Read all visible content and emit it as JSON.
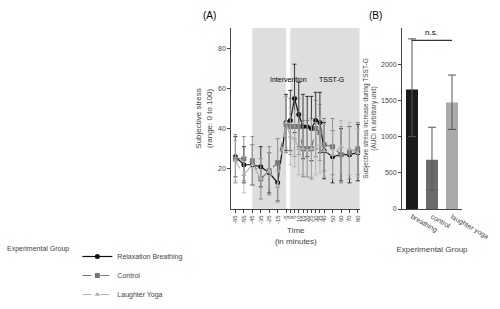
{
  "chart_data": [
    {
      "type": "line",
      "title": "(A)",
      "x_label": "Time\n(in minutes)",
      "y_label": "Subjective stress\n(range: 0 to 100)",
      "x": [
        -65,
        -55,
        -45,
        -35,
        -25,
        -15,
        -5,
        0,
        5,
        10,
        15,
        20,
        25,
        30,
        35,
        40,
        50,
        60,
        70,
        80
      ],
      "xlim": [
        -70,
        83
      ],
      "xticks": [
        -65,
        -55,
        -45,
        -35,
        -25,
        -15,
        -5,
        0,
        5,
        10,
        15,
        20,
        25,
        30,
        35,
        40,
        50,
        60,
        70,
        80
      ],
      "ylim": [
        0,
        90
      ],
      "yticks": [
        20,
        40,
        60,
        80
      ],
      "grid": false,
      "legend": "bottom",
      "legend_title": "Experimental Group",
      "series": [
        {
          "name": "Relaxation Breathing",
          "color": "#111111",
          "marker": "circle",
          "line_style": "solid",
          "values": [
            26,
            22,
            22,
            21,
            18,
            13,
            43,
            44,
            55,
            47,
            41,
            41,
            40,
            44,
            43,
            29,
            26,
            27,
            27,
            28
          ],
          "errors": [
            10,
            9,
            10,
            10,
            10,
            9,
            14,
            15,
            17,
            16,
            16,
            15,
            16,
            14,
            15,
            14,
            13,
            13,
            14,
            14
          ]
        },
        {
          "name": "Control",
          "color": "#777777",
          "marker": "square",
          "line_style": "dash",
          "values": [
            25,
            25,
            24,
            15,
            19,
            23,
            42,
            41,
            41,
            41,
            30,
            30,
            30,
            40,
            38,
            32,
            31,
            27,
            28,
            30
          ],
          "errors": [
            12,
            11,
            12,
            10,
            12,
            12,
            14,
            14,
            15,
            14,
            14,
            14,
            15,
            14,
            14,
            13,
            14,
            14,
            13,
            13
          ]
        },
        {
          "name": "Laughter Yoga",
          "color": "#b0b0b0",
          "marker": "triangle-up",
          "line_style": "dash",
          "values": [
            24,
            17,
            22,
            15,
            19,
            11,
            43,
            36,
            35,
            30,
            30,
            29,
            30,
            30,
            32,
            29,
            27,
            31,
            30,
            28
          ],
          "errors": [
            10,
            9,
            10,
            10,
            9,
            8,
            13,
            14,
            14,
            13,
            13,
            13,
            14,
            13,
            14,
            13,
            12,
            13,
            13,
            12
          ]
        }
      ],
      "shaded_regions": [
        {
          "start": -45,
          "end": -5,
          "color": "#dedede"
        },
        {
          "start": 0,
          "end": 82,
          "color": "#dedede"
        }
      ],
      "annotations": [
        {
          "text": "Intervention",
          "x": -27,
          "y": 67
        },
        {
          "text": "TSST-G",
          "x": 32,
          "y": 67
        }
      ]
    },
    {
      "type": "bar",
      "title": "(B)",
      "x_label": "Experimental Group",
      "y_label": "Subjective stress increase during TSST-G\n(AUCi in arbitrary unit)",
      "categories": [
        "breathing",
        "control",
        "laughter yoga"
      ],
      "values": [
        1650,
        680,
        1470
      ],
      "errors_up": [
        700,
        450,
        380
      ],
      "errors_down": [
        650,
        420,
        370
      ],
      "colors": [
        "#1a1a1a",
        "#6b6b6b",
        "#aaaaaa"
      ],
      "ylim": [
        0,
        2500
      ],
      "yticks": [
        0,
        500,
        1000,
        1500,
        2000
      ],
      "grid": false,
      "annotations": [
        {
          "text": "n.s.",
          "from": "breathing",
          "to": "laughter yoga",
          "y": 2330
        }
      ]
    }
  ]
}
